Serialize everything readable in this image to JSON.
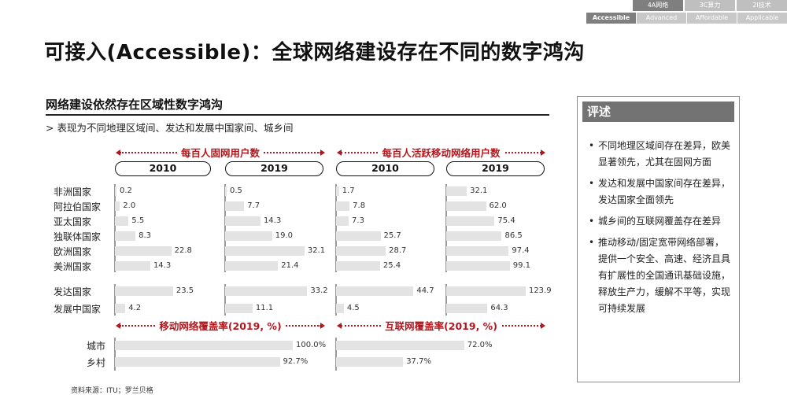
{
  "nav": {
    "top_tabs": [
      "4A网络",
      "3C算力",
      "2I技术"
    ],
    "active_top": 0,
    "sub_tabs": [
      "Accessible",
      "Advanced",
      "Affordable",
      "Applicable"
    ],
    "active_sub": 0
  },
  "page_title": "可接入(Accessible)：全球网络建设存在不同的数字鸿沟",
  "section": {
    "title": "网络建设依然存在区域性数字鸿沟",
    "subtitle": "> 表现为不同地理区域间、发达和发展中国家间、城乡间"
  },
  "source": "资料来源：ITU；罗兰贝格",
  "comment": {
    "heading": "评述",
    "items": [
      "不同地理区域间存在差异，欧美显著领先，尤其在固网方面",
      "发达和发展中国家间存在差异，发达国家全面领先",
      "城乡间的互联网覆盖存在差异",
      "推动移动/固定宽带网络部署，提供一个安全、高速、经济且具有扩展性的全国通讯基础设施，释放生产力，缓解不平等，实现可持续发展"
    ]
  },
  "chart_data": [
    {
      "type": "bar",
      "title": "每百人固网用户数",
      "years": [
        "2010",
        "2019"
      ],
      "categories": [
        "非洲国家",
        "阿拉伯国家",
        "亚太国家",
        "独联体国家",
        "欧洲国家",
        "美洲国家",
        "发达国家",
        "发展中国家"
      ],
      "series": [
        {
          "name": "2010",
          "values": [
            0.2,
            2.0,
            5.5,
            8.3,
            22.8,
            14.3,
            23.5,
            4.2
          ],
          "labels": [
            "0.2",
            "2.0",
            "5.5",
            "8.3",
            "22.8",
            "14.3",
            "23.5",
            "4.2"
          ]
        },
        {
          "name": "2019",
          "values": [
            0.5,
            7.7,
            14.3,
            19.0,
            32.1,
            21.4,
            33.2,
            11.1
          ],
          "labels": [
            "0.5",
            "7.7",
            "14.3",
            "19.0",
            "32.1",
            "21.4",
            "33.2",
            "11.1"
          ]
        }
      ]
    },
    {
      "type": "bar",
      "title": "每百人活跃移动网络用户数",
      "years": [
        "2010",
        "2019"
      ],
      "categories": [
        "非洲国家",
        "阿拉伯国家",
        "亚太国家",
        "独联体国家",
        "欧洲国家",
        "美洲国家",
        "发达国家",
        "发展中国家"
      ],
      "series": [
        {
          "name": "2010",
          "values": [
            1.7,
            7.8,
            7.3,
            25.7,
            28.7,
            25.4,
            44.7,
            4.5
          ],
          "labels": [
            "1.7",
            "7.8",
            "7.3",
            "25.7",
            "28.7",
            "25.4",
            "44.7",
            "4.5"
          ]
        },
        {
          "name": "2019",
          "values": [
            32.1,
            62.0,
            75.4,
            86.5,
            97.4,
            99.1,
            123.9,
            64.3
          ],
          "labels": [
            "32.1",
            "62.0",
            "75.4",
            "86.5",
            "97.4",
            "99.1",
            "123.9",
            "64.3"
          ]
        }
      ]
    },
    {
      "type": "bar",
      "title": "移动网络覆盖率(2019, %)",
      "categories": [
        "城市",
        "乡村"
      ],
      "values": [
        100.0,
        92.7
      ],
      "labels": [
        "100.0%",
        "92.7%"
      ]
    },
    {
      "type": "bar",
      "title": "互联网覆盖率(2019, %)",
      "categories": [
        "城市",
        "乡村"
      ],
      "values": [
        72.0,
        37.7
      ],
      "labels": [
        "72.0%",
        "37.7%"
      ]
    }
  ]
}
